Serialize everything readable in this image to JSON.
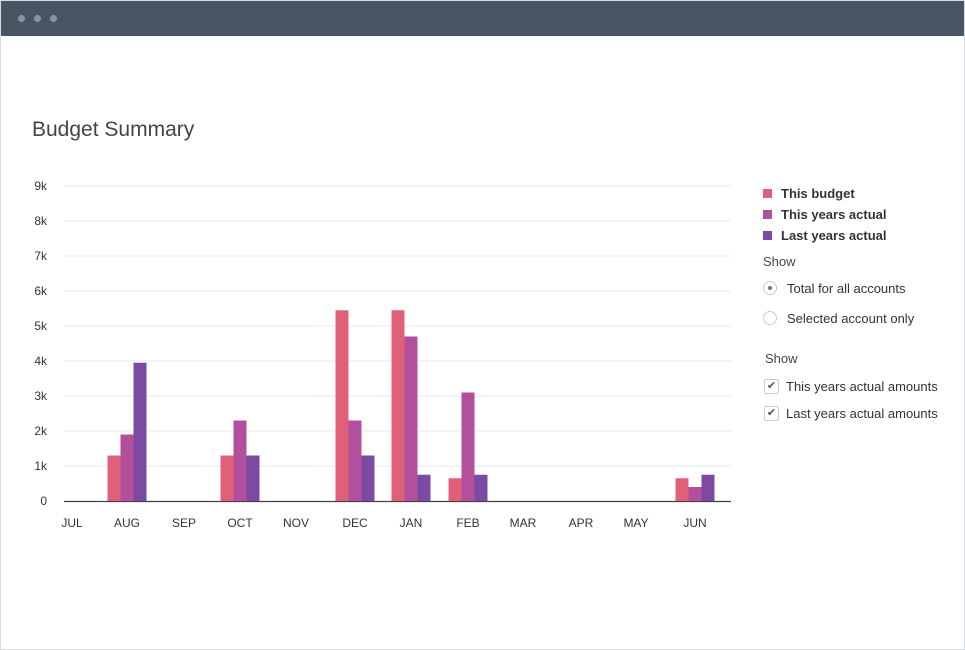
{
  "page": {
    "title": "Budget Summary"
  },
  "legend": [
    {
      "label": "This budget",
      "color": "#e0607a"
    },
    {
      "label": "This years actual",
      "color": "#b2509e"
    },
    {
      "label": "Last years actual",
      "color": "#7b4aa3"
    }
  ],
  "controls": {
    "show_label_1": "Show",
    "radio_total": "Total for all accounts",
    "radio_selected": "Selected account only",
    "radio_selected_value": "total",
    "show_label_2": "Show",
    "check_this_years": "This years actual amounts",
    "check_last_years": "Last years actual amounts",
    "check_this_years_checked": true,
    "check_last_years_checked": true,
    "check_glyph": "✔"
  },
  "chart_data": {
    "type": "bar",
    "title": "Budget Summary",
    "xlabel": "",
    "ylabel": "",
    "ylim": [
      0,
      9000
    ],
    "yticks": [
      "0",
      "1k",
      "2k",
      "3k",
      "4k",
      "5k",
      "6k",
      "7k",
      "8k",
      "9k"
    ],
    "ytick_values": [
      0,
      1000,
      2000,
      3000,
      4000,
      5000,
      6000,
      7000,
      8000,
      9000
    ],
    "grid": true,
    "legend_position": "right",
    "categories": [
      "JUL",
      "AUG",
      "SEP",
      "OCT",
      "NOV",
      "DEC",
      "JAN",
      "FEB",
      "MAR",
      "APR",
      "MAY",
      "JUN"
    ],
    "series": [
      {
        "name": "This budget",
        "color": "#e0607a",
        "values": [
          0,
          1300,
          0,
          1300,
          0,
          5450,
          5450,
          650,
          0,
          0,
          0,
          650
        ]
      },
      {
        "name": "This years actual",
        "color": "#b2509e",
        "values": [
          0,
          1900,
          0,
          2300,
          0,
          2300,
          4700,
          3100,
          0,
          0,
          0,
          400
        ]
      },
      {
        "name": "Last years actual",
        "color": "#7b4aa3",
        "values": [
          0,
          3950,
          0,
          1300,
          0,
          1300,
          750,
          750,
          0,
          0,
          0,
          750
        ]
      }
    ]
  }
}
